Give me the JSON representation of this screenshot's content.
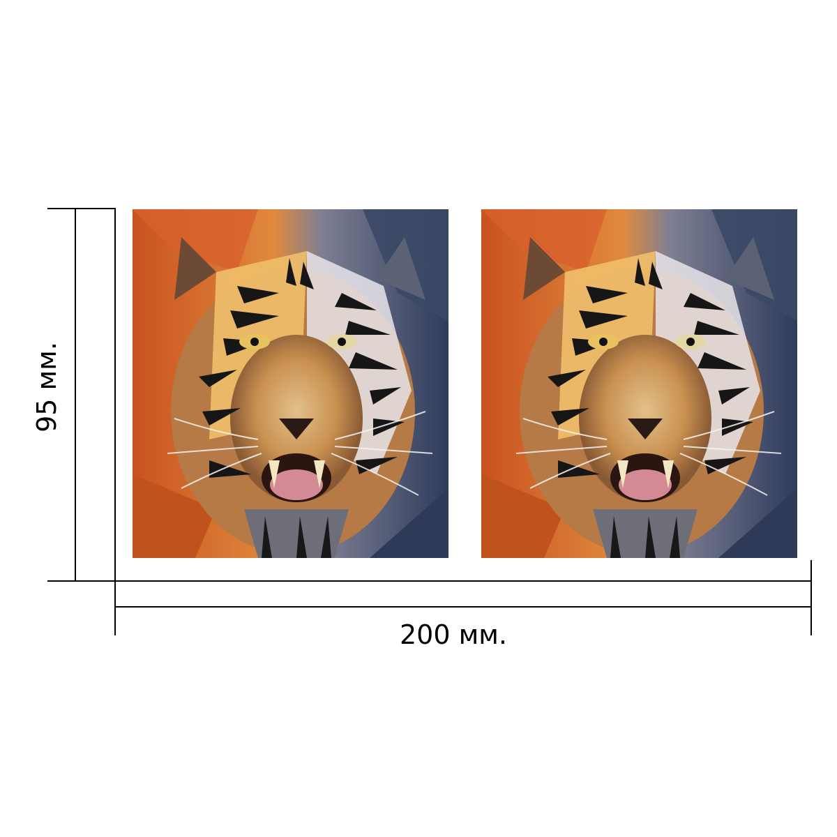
{
  "dimensions": {
    "height_label": "95 мм.",
    "width_label": "200 мм."
  },
  "prints": [
    {
      "subject": "tiger-face-artwork"
    },
    {
      "subject": "tiger-face-artwork"
    }
  ],
  "colors": {
    "line": "#000000",
    "warm_fur": "#d9662a",
    "cool_fur": "#3f4d6e",
    "muzzle": "#c79a68",
    "tongue": "#d48a94"
  }
}
